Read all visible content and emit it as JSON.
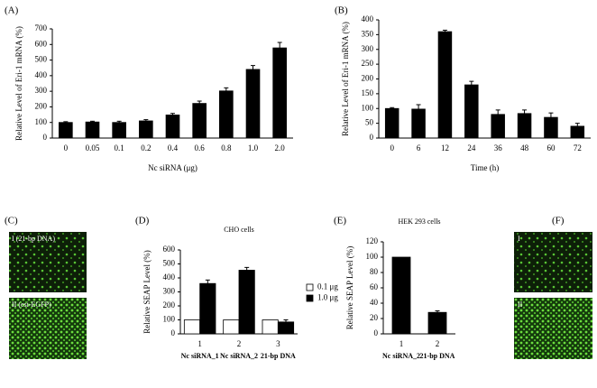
{
  "chart_data": [
    {
      "type": "bar",
      "panel_label": "(A)",
      "ylabel": "Relative Level of Eri-1 mRNA (%)",
      "xlabel": "Nc siRNA (μg)",
      "categories": [
        "0",
        "0.05",
        "0.1",
        "0.2",
        "0.4",
        "0.6",
        "0.8",
        "1.0",
        "2.0"
      ],
      "values": [
        100,
        103,
        100,
        110,
        148,
        222,
        302,
        440,
        578
      ],
      "errors": [
        5,
        5,
        8,
        8,
        10,
        15,
        20,
        25,
        35
      ],
      "color": "#000000",
      "ylim": [
        0,
        700
      ],
      "yticks": [
        0,
        100,
        200,
        300,
        400,
        500,
        600,
        700
      ]
    },
    {
      "type": "bar",
      "panel_label": "(B)",
      "ylabel": "Relative Level of Eri-1 mRNA (%)",
      "xlabel": "Time (h)",
      "categories": [
        "0",
        "6",
        "12",
        "24",
        "36",
        "48",
        "60",
        "72"
      ],
      "values": [
        100,
        98,
        360,
        180,
        80,
        83,
        70,
        40
      ],
      "errors": [
        3,
        15,
        5,
        12,
        15,
        12,
        15,
        10
      ],
      "color": "#000000",
      "ylim": [
        0,
        400
      ],
      "yticks": [
        0,
        50,
        100,
        150,
        200,
        250,
        300,
        350,
        400
      ]
    },
    {
      "type": "bar",
      "panel_label": "(D)",
      "title": "CHO cells",
      "ylabel": "Relative SEAP Level (%)",
      "categories": [
        "1",
        "2",
        "3"
      ],
      "category_labels": [
        "Nc siRNA_1",
        "Nc siRNA_2",
        "21-bp DNA"
      ],
      "series": [
        {
          "name": "0.1 μg",
          "color": "#ffffff",
          "values": [
            100,
            100,
            100
          ]
        },
        {
          "name": "1.0 μg",
          "color": "#000000",
          "values": [
            360,
            455,
            85
          ],
          "errors": [
            25,
            20,
            15
          ]
        }
      ],
      "ylim": [
        0,
        600
      ],
      "yticks": [
        0,
        100,
        200,
        300,
        400,
        500,
        600
      ],
      "legend": "right"
    },
    {
      "type": "bar",
      "panel_label": "(E)",
      "title": "HEK 293 cells",
      "ylabel": "Relative SEAP Level (%)",
      "categories": [
        "1",
        "2"
      ],
      "category_labels": [
        "Nc siRNA_2",
        "21-bp DNA"
      ],
      "values": [
        100,
        28
      ],
      "errors": [
        0,
        2
      ],
      "color": "#000000",
      "ylim": [
        0,
        120
      ],
      "yticks": [
        0,
        20,
        40,
        60,
        80,
        100,
        120
      ]
    }
  ],
  "image_panels": [
    {
      "label": "(C)",
      "captions": [
        "I (21-bp DNA)",
        "II (esi-EGFP)"
      ]
    },
    {
      "label": "(F)",
      "captions": [
        "I",
        "II"
      ]
    }
  ]
}
